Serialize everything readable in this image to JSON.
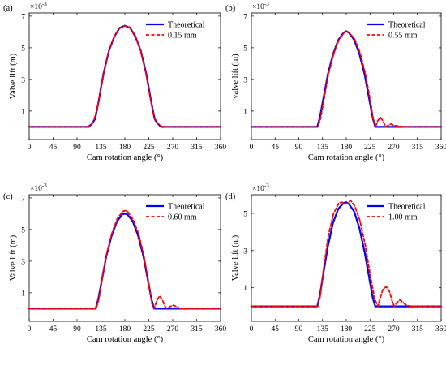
{
  "chart_data": [
    {
      "type": "line",
      "panel_label": "(a)",
      "exponent_label": {
        "base": "×10",
        "power": "-3"
      },
      "xlabel": "Cam rotation angle (°)",
      "ylabel": "Valve lift (m)",
      "xlim": [
        0,
        360
      ],
      "ylim": [
        -0.8,
        7.2
      ],
      "x_ticks": [
        "0",
        "45",
        "90",
        "135",
        "180",
        "225",
        "270",
        "315",
        "360"
      ],
      "y_ticks": [
        "1",
        "3",
        "5",
        "7"
      ],
      "legend_position": "top-right",
      "series": [
        {
          "name": "Theoretical",
          "color": "#0000ff",
          "style": "solid",
          "points": [
            [
              0,
              0
            ],
            [
              112,
              0
            ],
            [
              118,
              0.2
            ],
            [
              124,
              0.5
            ],
            [
              130,
              1.5
            ],
            [
              140,
              3.4
            ],
            [
              150,
              4.8
            ],
            [
              160,
              5.7
            ],
            [
              170,
              6.25
            ],
            [
              180,
              6.4
            ],
            [
              190,
              6.25
            ],
            [
              200,
              5.7
            ],
            [
              210,
              4.8
            ],
            [
              220,
              3.4
            ],
            [
              230,
              1.5
            ],
            [
              236,
              0.5
            ],
            [
              242,
              0.2
            ],
            [
              248,
              0
            ],
            [
              360,
              0
            ]
          ]
        },
        {
          "name": "0.15 mm",
          "color": "#ff0000",
          "style": "dashed",
          "points": [
            [
              0,
              0
            ],
            [
              110,
              0
            ],
            [
              116,
              0.15
            ],
            [
              122,
              0.45
            ],
            [
              129,
              1.3
            ],
            [
              139,
              3.2
            ],
            [
              149,
              4.7
            ],
            [
              159,
              5.65
            ],
            [
              169,
              6.2
            ],
            [
              179,
              6.4
            ],
            [
              189,
              6.3
            ],
            [
              199,
              5.8
            ],
            [
              209,
              4.9
            ],
            [
              219,
              3.5
            ],
            [
              229,
              1.6
            ],
            [
              235,
              0.6
            ],
            [
              241,
              0.25
            ],
            [
              248,
              0.05
            ],
            [
              254,
              0
            ],
            [
              360,
              0
            ]
          ]
        }
      ]
    },
    {
      "type": "line",
      "panel_label": "(b)",
      "exponent_label": {
        "base": "×10",
        "power": "-3"
      },
      "xlabel": "Cam rotation angle (°)",
      "ylabel": "valve lift (m)",
      "xlim": [
        0,
        360
      ],
      "ylim": [
        -0.8,
        7.2
      ],
      "x_ticks": [
        "0",
        "45",
        "90",
        "135",
        "180",
        "225",
        "270",
        "315",
        "360"
      ],
      "y_ticks": [
        "1",
        "3",
        "5",
        "7"
      ],
      "legend_position": "top-right",
      "series": [
        {
          "name": "Theoretical",
          "color": "#0000ff",
          "style": "solid",
          "points": [
            [
              0,
              0
            ],
            [
              125,
              0
            ],
            [
              130,
              0.6
            ],
            [
              135,
              1.5
            ],
            [
              145,
              3.3
            ],
            [
              155,
              4.6
            ],
            [
              165,
              5.5
            ],
            [
              175,
              5.95
            ],
            [
              180,
              6.05
            ],
            [
              185,
              5.95
            ],
            [
              195,
              5.5
            ],
            [
              205,
              4.6
            ],
            [
              215,
              3.3
            ],
            [
              225,
              1.5
            ],
            [
              230,
              0.6
            ],
            [
              235,
              0
            ],
            [
              360,
              0
            ]
          ]
        },
        {
          "name": "0.55 mm",
          "color": "#ff0000",
          "style": "dashed",
          "points": [
            [
              0,
              0
            ],
            [
              126,
              0
            ],
            [
              131,
              0.5
            ],
            [
              136,
              1.4
            ],
            [
              146,
              3.3
            ],
            [
              156,
              4.6
            ],
            [
              166,
              5.5
            ],
            [
              176,
              5.95
            ],
            [
              181,
              6.05
            ],
            [
              186,
              5.95
            ],
            [
              196,
              5.55
            ],
            [
              206,
              4.7
            ],
            [
              216,
              3.4
            ],
            [
              226,
              1.6
            ],
            [
              231,
              0.5
            ],
            [
              236,
              0.05
            ],
            [
              240,
              0.4
            ],
            [
              245,
              0.6
            ],
            [
              250,
              0.35
            ],
            [
              255,
              0
            ],
            [
              260,
              0.1
            ],
            [
              265,
              0.18
            ],
            [
              270,
              0.1
            ],
            [
              278,
              0.05
            ],
            [
              290,
              0
            ],
            [
              360,
              0
            ]
          ]
        }
      ]
    },
    {
      "type": "line",
      "panel_label": "(c)",
      "exponent_label": {
        "base": "×10",
        "power": "-3"
      },
      "xlabel": "Cam rotation angle (°)",
      "ylabel": "Valve lift (m)",
      "xlim": [
        0,
        360
      ],
      "ylim": [
        -0.8,
        7.2
      ],
      "x_ticks": [
        "0",
        "45",
        "90",
        "135",
        "180",
        "225",
        "270",
        "315",
        "360"
      ],
      "y_ticks": [
        "1",
        "3",
        "5",
        "7"
      ],
      "legend_position": "top-right",
      "series": [
        {
          "name": "Theoretical",
          "color": "#0000ff",
          "style": "solid",
          "points": [
            [
              0,
              0
            ],
            [
              125,
              0
            ],
            [
              130,
              0.6
            ],
            [
              135,
              1.5
            ],
            [
              145,
              3.3
            ],
            [
              155,
              4.6
            ],
            [
              165,
              5.5
            ],
            [
              175,
              5.95
            ],
            [
              180,
              6.0
            ],
            [
              185,
              5.95
            ],
            [
              195,
              5.5
            ],
            [
              205,
              4.6
            ],
            [
              215,
              3.3
            ],
            [
              225,
              1.5
            ],
            [
              230,
              0.6
            ],
            [
              235,
              0
            ],
            [
              360,
              0
            ]
          ]
        },
        {
          "name": "0.60 mm",
          "color": "#ff0000",
          "style": "dashed",
          "points": [
            [
              0,
              0
            ],
            [
              126,
              0
            ],
            [
              131,
              0.6
            ],
            [
              136,
              1.6
            ],
            [
              146,
              3.5
            ],
            [
              156,
              4.8
            ],
            [
              166,
              5.7
            ],
            [
              176,
              6.15
            ],
            [
              181,
              6.2
            ],
            [
              186,
              6.1
            ],
            [
              196,
              5.6
            ],
            [
              206,
              4.7
            ],
            [
              216,
              3.3
            ],
            [
              226,
              1.4
            ],
            [
              231,
              0.3
            ],
            [
              235,
              0
            ],
            [
              240,
              0.5
            ],
            [
              245,
              0.8
            ],
            [
              250,
              0.6
            ],
            [
              256,
              0.1
            ],
            [
              260,
              0
            ],
            [
              266,
              0.15
            ],
            [
              272,
              0.22
            ],
            [
              278,
              0.1
            ],
            [
              285,
              0
            ],
            [
              360,
              0
            ]
          ]
        }
      ]
    },
    {
      "type": "line",
      "panel_label": "(d)",
      "exponent_label": {
        "base": "×10",
        "power": "-3"
      },
      "xlabel": "Cam rotation angle (°)",
      "ylabel": "Valve lift (m)",
      "xlim": [
        0,
        360
      ],
      "ylim": [
        -0.8,
        6.0
      ],
      "x_ticks": [
        "0",
        "45",
        "90",
        "135",
        "180",
        "225",
        "270",
        "315",
        "360"
      ],
      "y_ticks": [
        "1",
        "3",
        "5"
      ],
      "legend_position": "top-right",
      "series": [
        {
          "name": "Theoretical",
          "color": "#0000ff",
          "style": "solid",
          "points": [
            [
              0,
              0
            ],
            [
              125,
              0
            ],
            [
              130,
              0.6
            ],
            [
              135,
              1.5
            ],
            [
              145,
              3.2
            ],
            [
              155,
              4.5
            ],
            [
              165,
              5.25
            ],
            [
              175,
              5.55
            ],
            [
              180,
              5.6
            ],
            [
              185,
              5.5
            ],
            [
              195,
              5.1
            ],
            [
              205,
              4.2
            ],
            [
              215,
              2.9
            ],
            [
              225,
              1.3
            ],
            [
              230,
              0.5
            ],
            [
              235,
              0
            ],
            [
              360,
              0
            ]
          ]
        },
        {
          "name": "1.00 mm",
          "color": "#ff0000",
          "style": "dashed",
          "points": [
            [
              0,
              0
            ],
            [
              126,
              0
            ],
            [
              131,
              0.6
            ],
            [
              136,
              1.8
            ],
            [
              146,
              3.8
            ],
            [
              156,
              5.0
            ],
            [
              166,
              5.55
            ],
            [
              172,
              5.6
            ],
            [
              178,
              5.5
            ],
            [
              183,
              5.55
            ],
            [
              188,
              5.7
            ],
            [
              196,
              5.4
            ],
            [
              206,
              4.6
            ],
            [
              216,
              3.3
            ],
            [
              226,
              1.6
            ],
            [
              234,
              0.4
            ],
            [
              240,
              0
            ],
            [
              245,
              0.5
            ],
            [
              250,
              0.95
            ],
            [
              256,
              1.05
            ],
            [
              262,
              0.8
            ],
            [
              267,
              0.3
            ],
            [
              271,
              0
            ],
            [
              276,
              0.2
            ],
            [
              282,
              0.35
            ],
            [
              288,
              0.2
            ],
            [
              295,
              0.05
            ],
            [
              305,
              0
            ],
            [
              360,
              0
            ]
          ]
        }
      ]
    }
  ]
}
